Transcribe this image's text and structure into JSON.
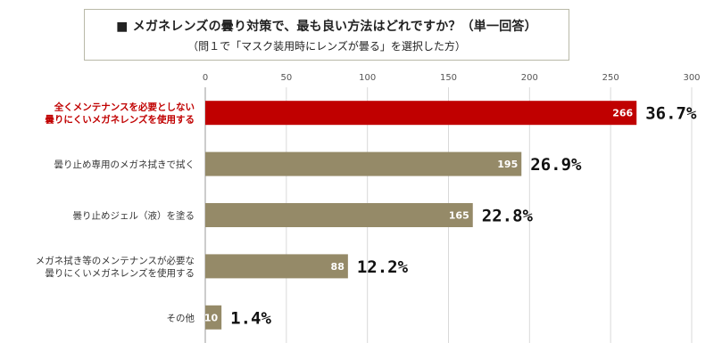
{
  "header": {
    "title": "■ メガネレンズの曇り対策で、最も良い方法はどれですか？（単一回答）",
    "subtitle": "（問１で「マスク装用時にレンズが曇る」を選択した方）"
  },
  "colors": {
    "highlight": "#c00000",
    "bar": "#958a68",
    "grid": "#d9d9d9",
    "highlight_text": "#c00000"
  },
  "chart_data": {
    "type": "bar",
    "orientation": "horizontal",
    "title": "メガネレンズの曇り対策で、最も良い方法はどれですか？（単一回答）",
    "subtitle": "（問１で「マスク装用時にレンズが曇る」を選択した方）",
    "xlim": [
      0,
      300
    ],
    "x_ticks": [
      "0",
      "50",
      "100",
      "150",
      "200",
      "250",
      "300"
    ],
    "grid": true,
    "categories": [
      [
        "全くメンテナンスを必要としない",
        "曇りにくいメガネレンズを使用する"
      ],
      [
        "曇り止め専用のメガネ拭きで拭く"
      ],
      [
        "曇り止めジェル（液）を塗る"
      ],
      [
        "メガネ拭き等のメンテナンスが必要な",
        "曇りにくいメガネレンズを使用する"
      ],
      [
        "その他"
      ]
    ],
    "values": [
      266,
      195,
      165,
      88,
      10
    ],
    "value_labels": [
      "266",
      "195",
      "165",
      "88",
      "10"
    ],
    "percent_labels": [
      "36.7%",
      "26.9%",
      "22.8%",
      "12.2%",
      "1.4%"
    ],
    "highlight_index": 0
  }
}
